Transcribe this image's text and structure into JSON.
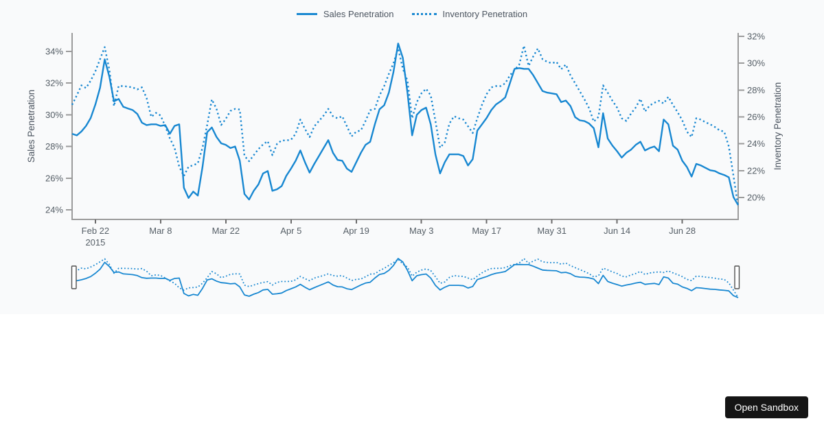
{
  "legend": {
    "series": [
      {
        "label": "Sales Penetration",
        "style": "solid"
      },
      {
        "label": "Inventory Penetration",
        "style": "dotted"
      }
    ]
  },
  "footer": {
    "open_sandbox_label": "Open Sandbox"
  },
  "colors": {
    "line_blue": "#1787d1",
    "axis_gray": "#9b9b9b",
    "tick_text": "#555e66",
    "panel_bg": "#f9fafb",
    "button_bg": "#151515",
    "button_text": "#ffffff"
  },
  "chart_data": {
    "type": "line",
    "title": "",
    "x_start_date": "2015-02-17",
    "x_unit": "day",
    "x_tick_labels": [
      "Feb 22",
      "Mar 8",
      "Mar 22",
      "Apr 5",
      "Apr 19",
      "May 3",
      "May 17",
      "May 31",
      "Jun 14",
      "Jun 28"
    ],
    "x_tick_days": [
      5,
      19,
      33,
      47,
      61,
      75,
      89,
      103,
      117,
      131
    ],
    "x_first_tick_year": "2015",
    "grid": false,
    "legend_position": "top-center",
    "left_axis": {
      "label": "Sales Penetration",
      "tick_labels": [
        "24%",
        "26%",
        "28%",
        "30%",
        "32%",
        "34%"
      ],
      "tick_values": [
        24,
        26,
        28,
        30,
        32,
        34
      ],
      "ylim": [
        23.4,
        35.2
      ]
    },
    "right_axis": {
      "label": "Inventory Penetration",
      "tick_labels": [
        "20%",
        "22%",
        "24%",
        "26%",
        "28%",
        "30%",
        "32%"
      ],
      "tick_values": [
        20,
        22,
        24,
        26,
        28,
        30,
        32
      ],
      "ylim": [
        18.4,
        32.3
      ]
    },
    "series": [
      {
        "name": "Sales Penetration",
        "axis": "left",
        "style": "solid",
        "values": [
          28.8,
          28.7,
          28.95,
          29.3,
          29.8,
          30.65,
          31.7,
          33.5,
          32.4,
          30.85,
          31.0,
          30.5,
          30.4,
          30.3,
          30.05,
          29.5,
          29.35,
          29.4,
          29.4,
          29.3,
          29.35,
          28.8,
          29.3,
          29.4,
          25.4,
          24.75,
          25.15,
          24.9,
          26.7,
          28.9,
          29.2,
          28.6,
          28.2,
          28.1,
          27.9,
          28.0,
          27.1,
          25.0,
          24.65,
          25.2,
          25.6,
          26.3,
          26.45,
          25.2,
          25.3,
          25.5,
          26.15,
          26.6,
          27.1,
          27.75,
          27.0,
          26.35,
          26.9,
          27.4,
          27.9,
          28.4,
          27.6,
          27.15,
          27.1,
          26.6,
          26.4,
          27.0,
          27.6,
          28.1,
          28.3,
          29.4,
          30.35,
          30.6,
          31.4,
          32.7,
          34.5,
          33.6,
          31.4,
          28.7,
          30.0,
          30.3,
          30.45,
          29.4,
          27.5,
          26.3,
          27.0,
          27.5,
          27.5,
          27.5,
          27.4,
          26.8,
          27.2,
          29.0,
          29.4,
          29.8,
          30.3,
          30.65,
          30.85,
          31.1,
          32.0,
          32.9,
          32.95,
          32.9,
          32.9,
          32.5,
          32.0,
          31.5,
          31.4,
          31.35,
          31.3,
          30.8,
          30.9,
          30.55,
          29.85,
          29.65,
          29.6,
          29.45,
          29.15,
          27.95,
          30.1,
          28.5,
          28.05,
          27.7,
          27.3,
          27.6,
          27.8,
          28.1,
          28.3,
          27.75,
          27.9,
          28.0,
          27.7,
          29.7,
          29.4,
          28.05,
          27.8,
          27.1,
          26.7,
          26.1,
          26.9,
          26.8,
          26.65,
          26.5,
          26.45,
          26.3,
          26.2,
          26.05,
          24.8,
          24.3
        ]
      },
      {
        "name": "Inventory Penetration",
        "axis": "right",
        "style": "dotted",
        "values": [
          26.9,
          27.6,
          28.35,
          28.15,
          28.7,
          29.4,
          30.3,
          31.2,
          29.5,
          26.8,
          28.3,
          28.3,
          28.25,
          28.2,
          28.05,
          28.2,
          27.4,
          26.0,
          26.3,
          26.1,
          25.3,
          24.4,
          23.7,
          22.3,
          21.6,
          22.3,
          22.4,
          22.55,
          23.7,
          25.4,
          27.3,
          26.6,
          25.4,
          25.85,
          26.45,
          26.6,
          26.55,
          23.1,
          22.7,
          23.15,
          23.6,
          23.95,
          24.2,
          23.15,
          24.0,
          24.25,
          24.25,
          24.3,
          24.75,
          25.8,
          25.1,
          24.5,
          25.3,
          25.7,
          26.1,
          26.6,
          26.05,
          25.9,
          26.05,
          25.3,
          24.55,
          24.9,
          25.0,
          25.7,
          26.5,
          26.6,
          27.6,
          28.3,
          29.2,
          30.0,
          31.1,
          29.6,
          28.7,
          25.9,
          27.1,
          27.75,
          28.1,
          27.6,
          25.7,
          23.7,
          24.1,
          25.5,
          26.05,
          25.9,
          25.8,
          25.3,
          24.8,
          25.9,
          26.9,
          27.7,
          28.2,
          28.3,
          28.3,
          28.5,
          29.1,
          29.5,
          29.9,
          31.3,
          29.8,
          30.5,
          31.1,
          30.3,
          30.1,
          30.0,
          30.1,
          29.55,
          29.9,
          29.1,
          28.5,
          27.9,
          27.3,
          26.65,
          25.65,
          26.0,
          28.35,
          27.8,
          27.2,
          26.7,
          25.9,
          25.7,
          26.25,
          26.7,
          27.35,
          26.4,
          26.85,
          27.05,
          27.2,
          27.0,
          27.5,
          26.9,
          26.35,
          25.75,
          24.9,
          24.5,
          25.9,
          25.8,
          25.6,
          25.45,
          25.25,
          25.0,
          24.9,
          23.8,
          21.6,
          19.3
        ]
      }
    ],
    "range_selector": {
      "present": true,
      "left_handle_position": "start",
      "right_handle_position": "end"
    }
  }
}
